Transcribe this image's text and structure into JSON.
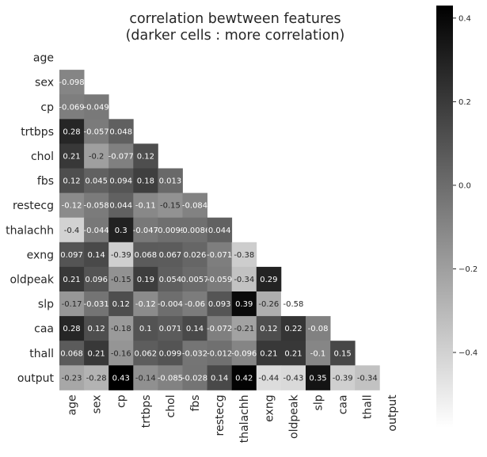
{
  "chart_data": {
    "type": "heatmap",
    "title_line1": "correlation bewtween features",
    "title_line2": "(darker cells : more correlation)",
    "variables": [
      "age",
      "sex",
      "cp",
      "trtbps",
      "chol",
      "fbs",
      "restecg",
      "thalachh",
      "exng",
      "oldpeak",
      "slp",
      "caa",
      "thall",
      "output"
    ],
    "lower_triangle_labels": [
      [],
      [
        "-0.098"
      ],
      [
        "-0.069",
        "-0.049"
      ],
      [
        "0.28",
        "-0.057",
        "0.048"
      ],
      [
        "0.21",
        "-0.2",
        "-0.077",
        "0.12"
      ],
      [
        "0.12",
        "0.045",
        "0.094",
        "0.18",
        "0.013"
      ],
      [
        "-0.12",
        "-0.058",
        "0.044",
        "-0.11",
        "-0.15",
        "-0.084"
      ],
      [
        "-0.4",
        "-0.044",
        "0.3",
        "-0.047",
        "-0.0099",
        "-0.0086",
        "0.044"
      ],
      [
        "0.097",
        "0.14",
        "-0.39",
        "0.068",
        "0.067",
        "0.026",
        "-0.071",
        "-0.38"
      ],
      [
        "0.21",
        "0.096",
        "-0.15",
        "0.19",
        "0.054",
        "0.0057",
        "-0.059",
        "-0.34",
        "0.29"
      ],
      [
        "-0.17",
        "-0.031",
        "0.12",
        "-0.12",
        "-0.004",
        "-0.06",
        "0.093",
        "0.39",
        "-0.26",
        "-0.58"
      ],
      [
        "0.28",
        "0.12",
        "-0.18",
        "0.1",
        "0.071",
        "0.14",
        "-0.072",
        "-0.21",
        "0.12",
        "0.22",
        "-0.08"
      ],
      [
        "0.068",
        "0.21",
        "-0.16",
        "0.062",
        "0.099",
        "-0.032",
        "-0.012",
        "-0.096",
        "0.21",
        "0.21",
        "-0.1",
        "0.15"
      ],
      [
        "-0.23",
        "-0.28",
        "0.43",
        "-0.14",
        "-0.085",
        "-0.028",
        "0.14",
        "0.42",
        "-0.44",
        "-0.43",
        "0.35",
        "-0.39",
        "-0.34"
      ]
    ],
    "color_scale": {
      "vmin": -0.58,
      "vmax": 0.43,
      "low_color": "#ffffff",
      "high_color": "#000000"
    },
    "colorbar_ticks": [
      {
        "value": 0.4,
        "label": "0.4"
      },
      {
        "value": 0.2,
        "label": "0.2"
      },
      {
        "value": 0.0,
        "label": "0.0"
      },
      {
        "value": -0.2,
        "label": "−0.2"
      },
      {
        "value": -0.4,
        "label": "−0.4"
      }
    ],
    "grid": false,
    "legend": "colorbar-right"
  }
}
